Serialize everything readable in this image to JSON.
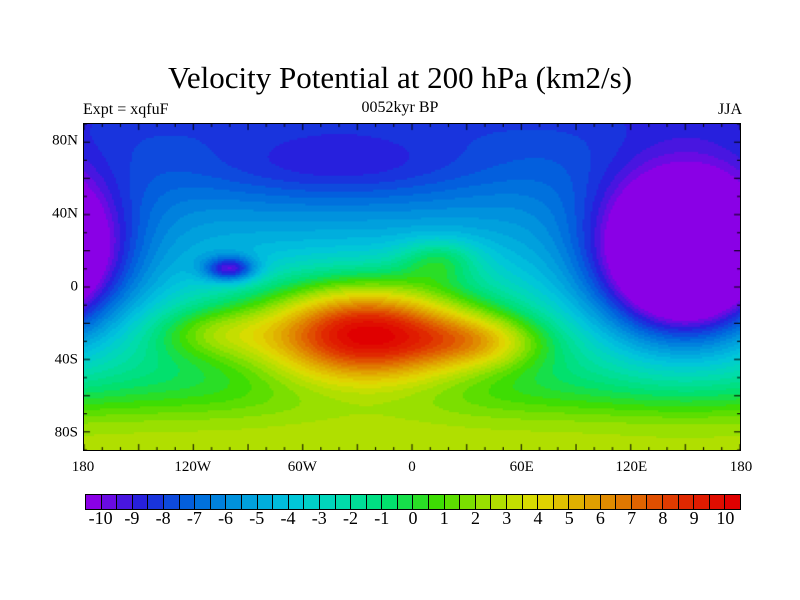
{
  "chart_data": {
    "type": "heatmap",
    "title": "Velocity Potential at 200 hPa (km2/s)",
    "left_string": "Expt = xqfuF",
    "center_string": "0052kyr BP",
    "right_string": "JJA",
    "x_ticks": [
      {
        "value": -180,
        "label": "180"
      },
      {
        "value": -120,
        "label": "120W"
      },
      {
        "value": -60,
        "label": "60W"
      },
      {
        "value": 0,
        "label": "0"
      },
      {
        "value": 60,
        "label": "60E"
      },
      {
        "value": 120,
        "label": "120E"
      },
      {
        "value": 180,
        "label": "180"
      }
    ],
    "y_ticks": [
      {
        "value": 80,
        "label": "80N"
      },
      {
        "value": 40,
        "label": "40N"
      },
      {
        "value": 0,
        "label": "0"
      },
      {
        "value": -40,
        "label": "40S"
      },
      {
        "value": -80,
        "label": "80S"
      }
    ],
    "xlim": [
      -180,
      180
    ],
    "ylim": [
      -90,
      90
    ],
    "colorbar": {
      "min": -10,
      "max": 10,
      "step": 0.5,
      "labels": [
        "-10",
        "-9",
        "-8",
        "-7",
        "-6",
        "-5",
        "-4",
        "-3",
        "-2",
        "-1",
        "0",
        "1",
        "2",
        "3",
        "4",
        "5",
        "6",
        "7",
        "8",
        "9",
        "10"
      ]
    },
    "features": [
      {
        "name": "positive maximum",
        "lon": -30,
        "lat": -25,
        "value": 10
      },
      {
        "name": "negative minimum",
        "lon": 150,
        "lat": 15,
        "value": -10
      },
      {
        "name": "secondary negative",
        "lon": -100,
        "lat": 10,
        "value": -6
      },
      {
        "name": "secondary positive",
        "lon": 15,
        "lat": 15,
        "value": 2
      }
    ],
    "palette": [
      "#8a00e6",
      "#2222dd",
      "#0066dd",
      "#0099dd",
      "#00c4dd",
      "#00dcb0",
      "#00e070",
      "#40dd00",
      "#a0e000",
      "#e0dc00",
      "#e0a800",
      "#e06a00",
      "#e02a00",
      "#e00000"
    ]
  }
}
